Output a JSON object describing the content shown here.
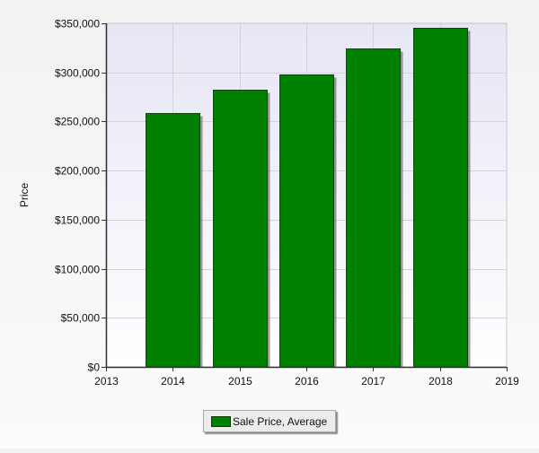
{
  "chart_data": {
    "type": "bar",
    "categories": [
      "2014",
      "2015",
      "2016",
      "2017",
      "2018"
    ],
    "x_ticks": [
      "2013",
      "2014",
      "2015",
      "2016",
      "2017",
      "2018",
      "2019"
    ],
    "series": [
      {
        "name": "Sale Price, Average",
        "values": [
          259000,
          282000,
          298000,
          324000,
          345000
        ]
      }
    ],
    "y_ticks": [
      "$0",
      "$50,000",
      "$100,000",
      "$150,000",
      "$200,000",
      "$250,000",
      "$300,000",
      "$350,000"
    ],
    "ylim": [
      0,
      350000
    ],
    "xlim": [
      2013,
      2019
    ],
    "title": "",
    "xlabel": "",
    "ylabel": "Price",
    "grid": true,
    "legend_position": "bottom-center",
    "colors": {
      "bar_fill": "#008000",
      "bar_stroke": "#114411",
      "plot_bg_top": "#e6e6f5",
      "plot_bg_bottom": "#ffffff",
      "grid": "#d3d3d8",
      "axis": "#333333"
    }
  }
}
